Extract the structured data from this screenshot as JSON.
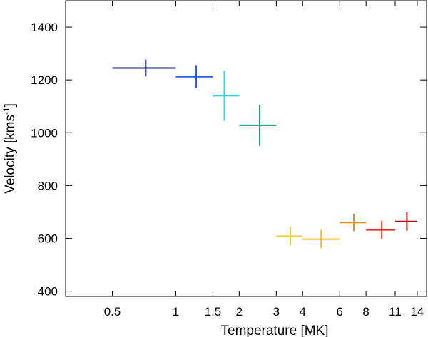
{
  "chart_data": {
    "type": "scatter",
    "xlabel": "Temperature [MK]",
    "ylabel": {
      "main": "Velocity [kms",
      "sup": "-1",
      "end": "]"
    },
    "xscale": "log",
    "xlim": [
      0.3,
      15.5
    ],
    "ylim": [
      380,
      1500
    ],
    "xticks": [
      {
        "value": 0.5,
        "label": "0.5"
      },
      {
        "value": 1,
        "label": "1"
      },
      {
        "value": 1.5,
        "label": "1.5"
      },
      {
        "value": 2,
        "label": "2"
      },
      {
        "value": 3,
        "label": "3"
      },
      {
        "value": 4,
        "label": "4"
      },
      {
        "value": 6,
        "label": "6"
      },
      {
        "value": 8,
        "label": "8"
      },
      {
        "value": 11,
        "label": "11"
      },
      {
        "value": 14,
        "label": "14"
      }
    ],
    "yticks": [
      {
        "value": 400,
        "label": "400"
      },
      {
        "value": 600,
        "label": "600"
      },
      {
        "value": 800,
        "label": "800"
      },
      {
        "value": 1000,
        "label": "1000"
      },
      {
        "value": 1200,
        "label": "1200"
      },
      {
        "value": 1400,
        "label": "1400"
      }
    ],
    "points": [
      {
        "x": 0.72,
        "xlo": 0.5,
        "xhi": 1.0,
        "y": 1245,
        "ylo": 1213,
        "yhi": 1277,
        "color": "#0a1a7a"
      },
      {
        "x": 1.25,
        "xlo": 1.0,
        "xhi": 1.5,
        "y": 1212,
        "ylo": 1168,
        "yhi": 1256,
        "color": "#1f5ee8"
      },
      {
        "x": 1.7,
        "xlo": 1.5,
        "xhi": 2.0,
        "y": 1140,
        "ylo": 1045,
        "yhi": 1235,
        "color": "#2ad8f0"
      },
      {
        "x": 2.5,
        "xlo": 2.0,
        "xhi": 3.0,
        "y": 1028,
        "ylo": 950,
        "yhi": 1106,
        "color": "#1c9a78"
      },
      {
        "x": 3.5,
        "xlo": 3.0,
        "xhi": 4.0,
        "y": 608,
        "ylo": 573,
        "yhi": 643,
        "color": "#f2cf1a"
      },
      {
        "x": 4.9,
        "xlo": 4.0,
        "xhi": 6.0,
        "y": 597,
        "ylo": 562,
        "yhi": 632,
        "color": "#f4b81c"
      },
      {
        "x": 7.0,
        "xlo": 6.0,
        "xhi": 8.0,
        "y": 660,
        "ylo": 627,
        "yhi": 693,
        "color": "#ee8a12"
      },
      {
        "x": 9.5,
        "xlo": 8.0,
        "xhi": 11.0,
        "y": 632,
        "ylo": 597,
        "yhi": 667,
        "color": "#e6301e"
      },
      {
        "x": 12.5,
        "xlo": 11.0,
        "xhi": 14.0,
        "y": 664,
        "ylo": 629,
        "yhi": 699,
        "color": "#b30c0c"
      }
    ]
  }
}
